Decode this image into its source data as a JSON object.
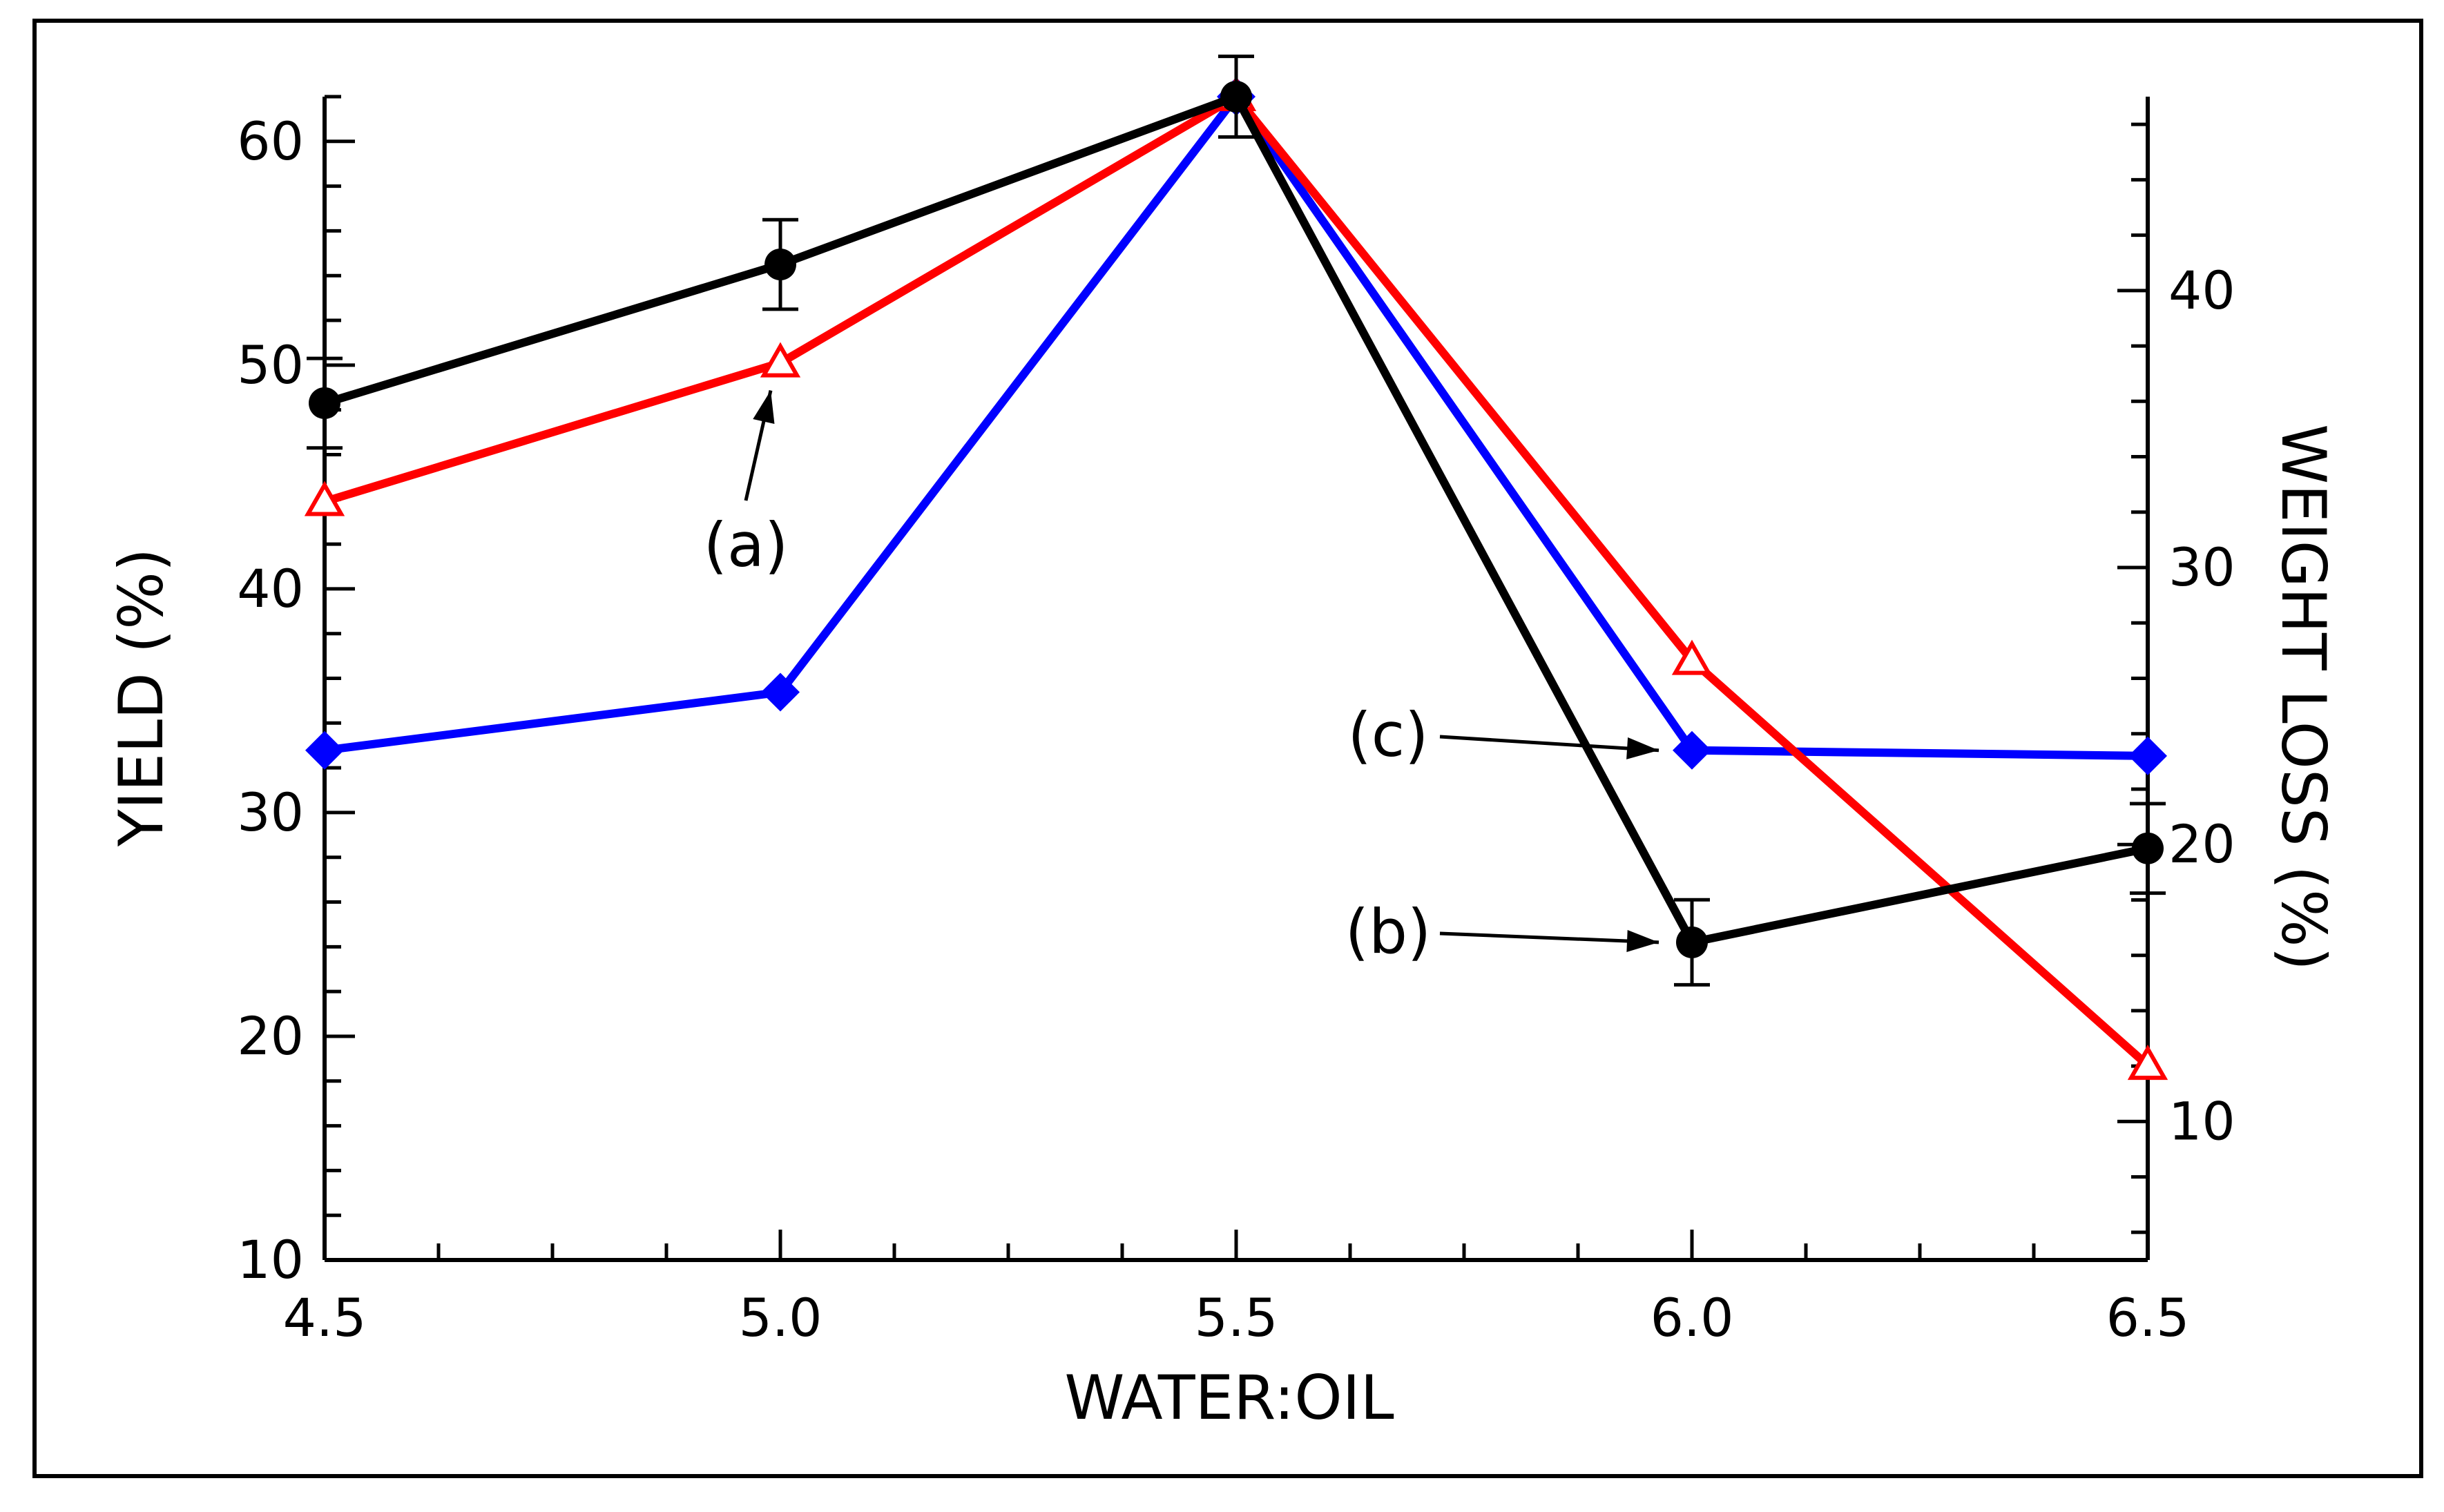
{
  "chart_data": {
    "type": "line",
    "title": "",
    "xlabel": "WATER:OIL",
    "ylabel": "YIELD (%)",
    "y2label": "WEIGHT LOSS (%)",
    "x": [
      4.5,
      5.0,
      5.5,
      6.0,
      6.5
    ],
    "xlim": [
      4.5,
      6.5
    ],
    "ylim": [
      10,
      62
    ],
    "y2lim": [
      5,
      47
    ],
    "x_ticks": [
      "4.5",
      "5.0",
      "5.5",
      "6.0",
      "6.5"
    ],
    "y_ticks": [
      "10",
      "20",
      "30",
      "40",
      "50",
      "60"
    ],
    "y2_ticks": [
      "10",
      "20",
      "30",
      "40"
    ],
    "grid": false,
    "series": [
      {
        "key": "black",
        "axis": "left",
        "color": "#000000",
        "marker": "circle",
        "values": [
          48.3,
          54.5,
          62.0,
          24.2,
          28.4
        ],
        "error": [
          2.0,
          2.0,
          1.8,
          1.9,
          2.0
        ]
      },
      {
        "key": "red",
        "axis": "left",
        "color": "#ff0000",
        "marker": "triangle-open",
        "values": [
          43.9,
          50.1,
          62.0,
          36.8,
          18.7
        ]
      },
      {
        "key": "blue",
        "axis": "right",
        "color": "#0000ff",
        "marker": "diamond",
        "values": [
          23.4,
          25.5,
          47.0,
          23.4,
          23.2
        ]
      }
    ],
    "annotations": [
      {
        "text": "(a)",
        "target_series": "red",
        "target_index": 1
      },
      {
        "text": "(c)",
        "target_series": "blue",
        "target_index": 3
      },
      {
        "text": "(b)",
        "target_series": "black",
        "target_index": 3
      }
    ]
  }
}
